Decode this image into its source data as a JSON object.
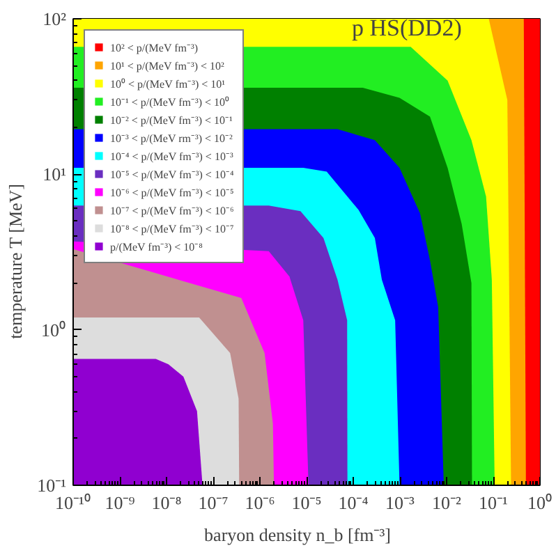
{
  "chart_data": {
    "type": "area",
    "log": "xy",
    "legend": "top left",
    "xlabel": "baryon density   n_b   [fm⁻³]",
    "ylabel": "temperature   T   [MeV]",
    "annotations": [
      "p    HS(DD2)"
    ],
    "xlim": [
      1e-10,
      1
    ],
    "ylim": [
      0.1,
      100
    ],
    "xticks": [
      {
        "value": 1e-10,
        "label": "10⁻¹⁰"
      },
      {
        "value": 1e-09,
        "label": "10⁻⁹"
      },
      {
        "value": 1e-08,
        "label": "10⁻⁸"
      },
      {
        "value": 1e-07,
        "label": "10⁻⁷"
      },
      {
        "value": 1e-06,
        "label": "10⁻⁶"
      },
      {
        "value": 1e-05,
        "label": "10⁻⁵"
      },
      {
        "value": 0.0001,
        "label": "10⁻⁴"
      },
      {
        "value": 0.001,
        "label": "10⁻³"
      },
      {
        "value": 0.01,
        "label": "10⁻²"
      },
      {
        "value": 0.1,
        "label": "10⁻¹"
      },
      {
        "value": 1,
        "label": "10⁰"
      }
    ],
    "yticks": [
      {
        "value": 0.1,
        "label": "10⁻¹"
      },
      {
        "value": 1,
        "label": "10⁰"
      },
      {
        "value": 10,
        "label": "10¹"
      },
      {
        "value": 100,
        "label": "10²"
      }
    ],
    "series": [
      {
        "name": "10² < p/(MeV fm⁻³)",
        "color": "#ff0000",
        "x": [
          1e-10,
          1
        ],
        "values": [
          100,
          100
        ]
      },
      {
        "name": "10¹ < p/(MeV fm⁻³) < 10²",
        "color": "#ffa500",
        "x": [
          1e-10,
          0.45,
          0.5
        ],
        "values": [
          100,
          100,
          0.1
        ]
      },
      {
        "name": "10⁰ < p/(MeV fm⁻³) < 10¹",
        "color": "#ffff00",
        "x": [
          1e-10,
          0.08,
          0.2,
          0.24
        ],
        "values": [
          100,
          100,
          30,
          0.1
        ]
      },
      {
        "name": "10⁻¹ < p/(MeV fm⁻³) < 10⁰",
        "color": "#22ee22",
        "x": [
          1e-10,
          0.0017,
          0.0105,
          0.034,
          0.07,
          0.093,
          0.107
        ],
        "values": [
          66,
          66,
          40,
          16.6,
          7.2,
          2.1,
          0.1
        ]
      },
      {
        "name": "10⁻² < p/(MeV fm⁻³) < 10⁻¹",
        "color": "#008000",
        "x": [
          1e-10,
          0.00016,
          0.00098,
          0.0044,
          0.0105,
          0.021,
          0.034,
          0.035
        ],
        "values": [
          36,
          36,
          31,
          23.5,
          11,
          4.8,
          2.0,
          0.1
        ]
      },
      {
        "name": "10⁻³ < p/(MeV rm⁻³) < 10⁻²",
        "color": "#0000ff",
        "x": [
          1e-10,
          4.6e-05,
          0.00029,
          0.00098,
          0.0027,
          0.0044,
          0.0066,
          0.0087
        ],
        "values": [
          19.5,
          19.5,
          16.6,
          11,
          5.6,
          2.8,
          1.4,
          0.1
        ]
      },
      {
        "name": "10⁻⁴ < p/(MeV fm⁻³) < 10⁻³",
        "color": "#00ffff",
        "x": [
          1e-10,
          8.5e-06,
          2.7e-05,
          0.00013,
          0.00029,
          0.00041,
          0.00079,
          0.00098
        ],
        "values": [
          11,
          11,
          10.4,
          5.9,
          3.9,
          2.1,
          1.15,
          0.1
        ]
      },
      {
        "name": "10⁻⁵ < p/(MeV fm⁻³) < 10⁻⁴",
        "color": "#6a2ec0",
        "x": [
          1e-10,
          1.55e-06,
          7.4e-06,
          2.3e-05,
          4.6e-05,
          7.4e-05,
          7.5e-05
        ],
        "values": [
          6.3,
          6.3,
          5.8,
          3.9,
          2.1,
          1.15,
          0.1
        ]
      },
      {
        "name": "10⁻⁶ < p/(MeV fm⁻³) < 10⁻⁵",
        "color": "#ff00ff",
        "x": [
          1e-10,
          1.55e-06,
          4.3e-06,
          8.5e-06,
          1.1e-05
        ],
        "values": [
          3.7,
          3.2,
          2.2,
          1.15,
          0.1
        ]
      },
      {
        "name": "10⁻⁷ < p/(MeV fm⁻³) < 10⁻⁶",
        "color": "#c09090",
        "x": [
          1e-10,
          4e-07,
          1.26e-06,
          1.9e-06,
          2e-06
        ],
        "values": [
          3.3,
          1.6,
          0.71,
          0.25,
          0.1
        ]
      },
      {
        "name": "10⁻⁸ < p/(MeV fm⁻³) < 10⁻⁷",
        "color": "#dddddd",
        "x": [
          1e-10,
          5e-08,
          2.3e-07,
          3.5e-07,
          3.6e-07
        ],
        "values": [
          1.2,
          1.2,
          0.71,
          0.36,
          0.1
        ]
      },
      {
        "name": "p/(MeV fm⁻³) < 10⁻⁸",
        "color": "#9000d0",
        "x": [
          1e-10,
          5.9e-09,
          1.1e-08,
          2.3e-08,
          4.5e-08,
          5.9e-08
        ],
        "values": [
          0.65,
          0.65,
          0.6,
          0.5,
          0.3,
          0.1
        ]
      }
    ]
  }
}
